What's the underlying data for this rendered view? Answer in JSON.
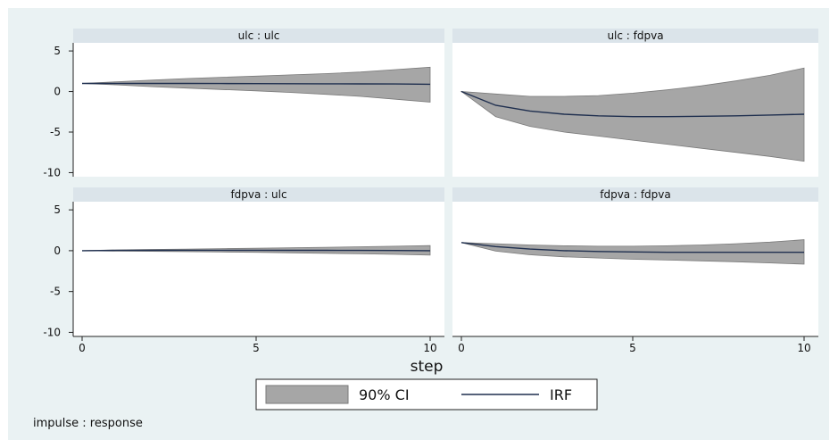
{
  "chart_data": {
    "type": "line",
    "x": [
      0,
      1,
      2,
      3,
      4,
      5,
      6,
      7,
      8,
      9,
      10
    ],
    "x_ticks": [
      "0",
      "5",
      "10"
    ],
    "x_tick_values": [
      0,
      5,
      10
    ],
    "y_ticks": [
      "5",
      "0",
      "-5",
      "-10"
    ],
    "y_tick_values": [
      5,
      0,
      -5,
      -10
    ],
    "xlabel": "step",
    "ylim": [
      -10.5,
      6
    ],
    "xlim": [
      0,
      10
    ],
    "grid": false,
    "legend_position": "bottom",
    "legend": [
      {
        "label": "90% CI",
        "kind": "band"
      },
      {
        "label": "IRF",
        "kind": "line"
      }
    ],
    "colors": {
      "ci_fill": "#a6a6a6",
      "ci_stroke": "#7a7a7a",
      "irf_line": "#1f2f4f",
      "strip": "#dbe4ea",
      "outer_bg": "#eaf2f3",
      "plot_bg": "#ffffff"
    },
    "note": "impulse : response",
    "panels": [
      {
        "title": "ulc : ulc",
        "irf": [
          1.0,
          1.0,
          1.0,
          1.0,
          0.98,
          0.97,
          0.96,
          0.95,
          0.94,
          0.93,
          0.9
        ],
        "lower": [
          1.0,
          0.82,
          0.6,
          0.42,
          0.25,
          0.08,
          -0.12,
          -0.35,
          -0.6,
          -0.95,
          -1.3
        ],
        "upper": [
          1.0,
          1.2,
          1.4,
          1.6,
          1.75,
          1.9,
          2.05,
          2.2,
          2.4,
          2.7,
          3.0
        ]
      },
      {
        "title": "ulc : fdpva",
        "irf": [
          0,
          -1.7,
          -2.4,
          -2.8,
          -3.0,
          -3.1,
          -3.1,
          -3.05,
          -3.0,
          -2.9,
          -2.8
        ],
        "lower": [
          0,
          -3.1,
          -4.3,
          -5.0,
          -5.5,
          -6.0,
          -6.5,
          -7.0,
          -7.5,
          -8.0,
          -8.6
        ],
        "upper": [
          0,
          -0.3,
          -0.6,
          -0.6,
          -0.5,
          -0.2,
          0.2,
          0.7,
          1.3,
          2.0,
          2.9
        ]
      },
      {
        "title": "fdpva : ulc",
        "irf": [
          0,
          0.03,
          0.05,
          0.06,
          0.06,
          0.06,
          0.05,
          0.04,
          0.03,
          0.02,
          0.0
        ],
        "lower": [
          0,
          -0.05,
          -0.08,
          -0.12,
          -0.16,
          -0.2,
          -0.26,
          -0.32,
          -0.38,
          -0.45,
          -0.55
        ],
        "upper": [
          0,
          0.1,
          0.15,
          0.2,
          0.25,
          0.3,
          0.35,
          0.42,
          0.48,
          0.55,
          0.62
        ]
      },
      {
        "title": "fdpva : fdpva",
        "irf": [
          1.0,
          0.5,
          0.2,
          0.0,
          -0.1,
          -0.15,
          -0.2,
          -0.2,
          -0.2,
          -0.2,
          -0.2
        ],
        "lower": [
          1.0,
          -0.05,
          -0.5,
          -0.75,
          -0.9,
          -1.05,
          -1.15,
          -1.25,
          -1.35,
          -1.5,
          -1.65
        ],
        "upper": [
          1.0,
          0.85,
          0.7,
          0.6,
          0.55,
          0.55,
          0.6,
          0.7,
          0.85,
          1.05,
          1.35
        ]
      }
    ]
  }
}
